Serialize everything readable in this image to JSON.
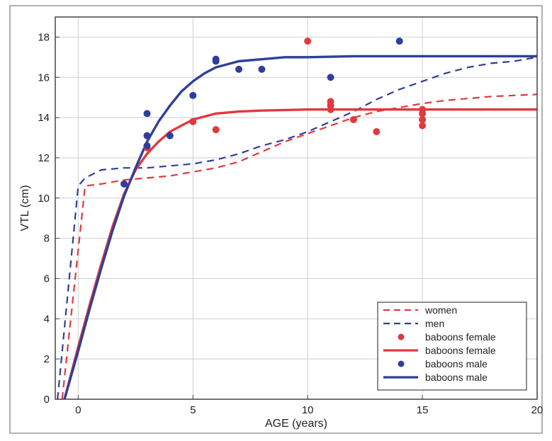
{
  "chart_data": {
    "type": "line",
    "title": "",
    "xlabel": "AGE (years)",
    "ylabel": "VTL (cm)",
    "xlim": [
      -1,
      20
    ],
    "ylim": [
      0,
      19
    ],
    "xticks": [
      0,
      5,
      10,
      15,
      20
    ],
    "yticks": [
      0,
      2,
      4,
      6,
      8,
      10,
      12,
      14,
      16,
      18
    ],
    "xtick_labels": [
      "0",
      "5",
      "10",
      "15",
      "20"
    ],
    "ytick_labels": [
      "0",
      "2",
      "4",
      "6",
      "8",
      "10",
      "12",
      "14",
      "16",
      "18"
    ],
    "grid": true,
    "legend_position": "bottom-right",
    "series": [
      {
        "name": "women",
        "kind": "line",
        "style": "dashed",
        "color": "#e0393e",
        "x": [
          -0.7,
          0.3,
          1,
          2,
          3,
          4,
          5,
          6,
          7,
          8,
          9,
          10,
          11,
          12,
          13,
          14,
          15,
          16,
          17,
          18,
          19,
          20
        ],
        "y": [
          0,
          10.6,
          10.7,
          10.9,
          11.0,
          11.1,
          11.3,
          11.5,
          11.8,
          12.3,
          12.8,
          13.2,
          13.6,
          14.0,
          14.3,
          14.5,
          14.7,
          14.85,
          14.95,
          15.05,
          15.1,
          15.15
        ]
      },
      {
        "name": "men",
        "kind": "line",
        "style": "dashed",
        "color": "#2f3f99",
        "x": [
          -0.9,
          0,
          0.3,
          1,
          2,
          3,
          4,
          5,
          6,
          7,
          8,
          9,
          10,
          11,
          12,
          13,
          14,
          15,
          16,
          17,
          18,
          19,
          20
        ],
        "y": [
          0,
          10.6,
          11.0,
          11.4,
          11.5,
          11.5,
          11.6,
          11.7,
          11.9,
          12.2,
          12.6,
          12.9,
          13.3,
          13.8,
          14.3,
          14.9,
          15.4,
          15.8,
          16.2,
          16.5,
          16.7,
          16.8,
          17.0
        ]
      },
      {
        "name": "baboons female",
        "kind": "points",
        "color": "#e0393e",
        "x": [
          2,
          3,
          5,
          6,
          10,
          11,
          11,
          11,
          12,
          13,
          15,
          15,
          15,
          15
        ],
        "y": [
          10.7,
          12.5,
          13.8,
          13.4,
          17.8,
          14.8,
          14.6,
          14.4,
          13.9,
          13.3,
          14.4,
          14.2,
          13.9,
          13.6
        ]
      },
      {
        "name": "baboons female",
        "kind": "line",
        "style": "solid",
        "color": "#e0393e",
        "x": [
          -0.6,
          0,
          0.5,
          1,
          1.5,
          2,
          2.5,
          3,
          3.5,
          4,
          5,
          6,
          7,
          8,
          10,
          12,
          15,
          20
        ],
        "y": [
          0,
          2.6,
          4.7,
          6.7,
          8.6,
          10.2,
          11.4,
          12.2,
          12.8,
          13.3,
          13.9,
          14.2,
          14.3,
          14.35,
          14.4,
          14.4,
          14.4,
          14.4
        ]
      },
      {
        "name": "baboons male",
        "kind": "points",
        "color": "#2f3f99",
        "x": [
          2,
          3,
          3,
          3,
          4,
          5,
          6,
          6,
          7,
          8,
          11,
          14
        ],
        "y": [
          10.7,
          12.6,
          13.1,
          14.2,
          13.1,
          15.1,
          16.9,
          16.8,
          16.4,
          16.4,
          16.0,
          17.8
        ]
      },
      {
        "name": "baboons male",
        "kind": "line",
        "style": "solid",
        "color": "#2f3f99",
        "x": [
          -0.6,
          0,
          0.5,
          1,
          1.5,
          2,
          2.5,
          3,
          3.5,
          4,
          4.5,
          5,
          5.5,
          6,
          7,
          8,
          9,
          10,
          12,
          15,
          20
        ],
        "y": [
          0,
          2.4,
          4.5,
          6.5,
          8.4,
          10.1,
          11.5,
          12.8,
          13.8,
          14.6,
          15.3,
          15.8,
          16.2,
          16.5,
          16.8,
          16.9,
          17.0,
          17.0,
          17.05,
          17.05,
          17.05
        ]
      }
    ]
  }
}
